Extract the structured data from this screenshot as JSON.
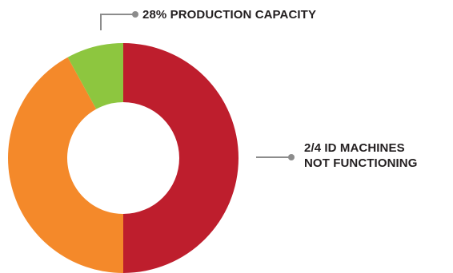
{
  "chart_data": {
    "type": "pie",
    "variant": "donut",
    "slices": [
      {
        "label": "",
        "value": 50,
        "color": "#be1e2d"
      },
      {
        "label": "",
        "value": 42,
        "color": "#f4892a"
      },
      {
        "label": "",
        "value": 8,
        "color": "#8dc63f"
      }
    ],
    "annotations": [
      {
        "text": "28% PRODUCTION CAPACITY"
      },
      {
        "text": "2/4 ID MACHINES",
        "text2": "NOT FUNCTIONING"
      }
    ],
    "legend": "none",
    "grid": false
  },
  "colors": {
    "leader_line": "#8c8c8c",
    "text": "#231f20"
  }
}
